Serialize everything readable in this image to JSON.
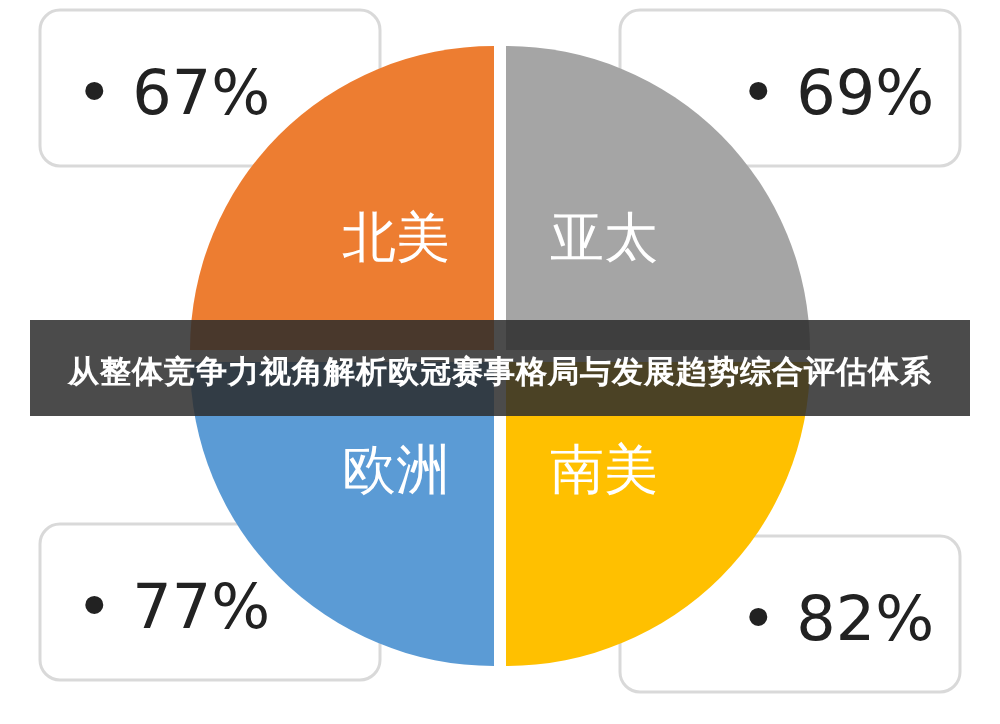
{
  "chart_data": {
    "type": "other",
    "title": "从整体竞争力视角解析欧冠赛事格局与发展趋势综合评估体系",
    "categories": [
      "北美",
      "亚太",
      "欧洲",
      "南美"
    ],
    "values": [
      67,
      69,
      77,
      82
    ],
    "value_labels": [
      "• 67%",
      "• 69%",
      "• 77%",
      "• 82%"
    ],
    "colors": [
      "#ed7d31",
      "#a5a5a5",
      "#5b9bd5",
      "#ffc000"
    ]
  }
}
